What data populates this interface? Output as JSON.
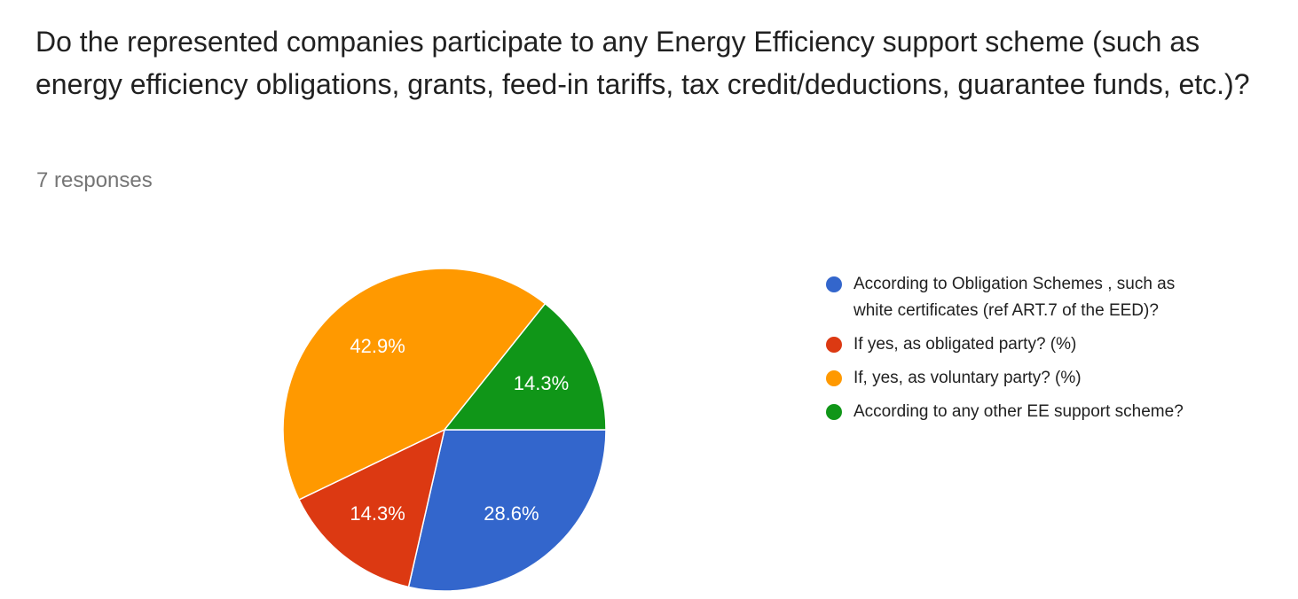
{
  "page": {
    "background_color": "#ffffff"
  },
  "header": {
    "title": "Do the represented companies participate to any Energy Efficiency support scheme (such as energy efficiency obligations, grants, feed-in tariffs, tax credit/deductions, guarantee funds, etc.)?",
    "responses_count": "7 responses"
  },
  "chart_data": {
    "type": "pie",
    "title": "Do the represented companies participate to any Energy Efficiency support scheme (such as energy efficiency obligations, grants, feed-in tariffs, tax credit/deductions, guarantee funds, etc.)?",
    "subtitle": "7 responses",
    "total_responses": 7,
    "start": "east",
    "direction": "clockwise",
    "legend_position": "right",
    "slice_label_color": "#ffffff",
    "slice_border_color": "#ffffff",
    "slices": [
      {
        "label": "According to Obligation Schemes , such as white certificates (ref ART.7 of the EED)?",
        "count": 2,
        "percent": 28.6,
        "percent_label": "28.6%",
        "color": "#3366cc"
      },
      {
        "label": "If yes, as obligated party? (%)",
        "count": 1,
        "percent": 14.3,
        "percent_label": "14.3%",
        "color": "#dc3912"
      },
      {
        "label": "If, yes, as voluntary party? (%)",
        "count": 3,
        "percent": 42.9,
        "percent_label": "42.9%",
        "color": "#ff9900"
      },
      {
        "label": "According to any other EE support scheme?",
        "count": 1,
        "percent": 14.3,
        "percent_label": "14.3%",
        "color": "#109618"
      }
    ]
  }
}
